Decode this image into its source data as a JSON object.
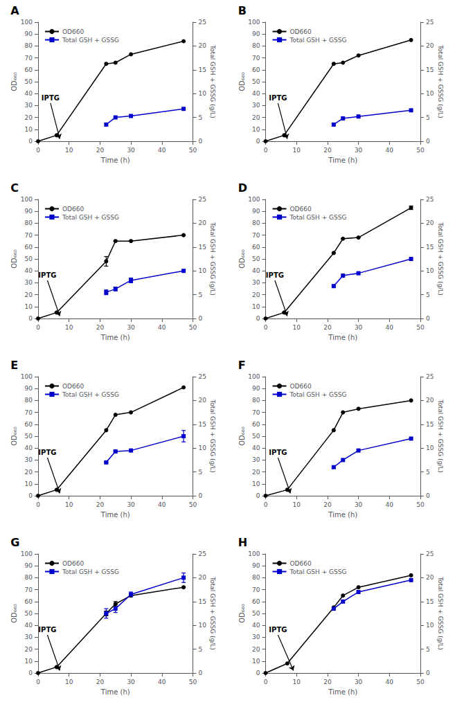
{
  "chart_data": [
    {
      "type": "line",
      "title": "A",
      "xlabel": "Time (h)",
      "ylabel": "OD₆₆₀",
      "y2label": "Total GSH + GSSG (g/L)",
      "xlim": [
        0,
        50
      ],
      "xticks": [
        0,
        10,
        20,
        30,
        40,
        50
      ],
      "ylim": [
        0,
        100
      ],
      "yticks": [
        0,
        10,
        20,
        30,
        40,
        50,
        60,
        70,
        80,
        90,
        100
      ],
      "y2lim": [
        0,
        25
      ],
      "y2ticks": [
        0,
        5,
        10,
        15,
        20,
        25
      ],
      "grid": false,
      "legend": "upper left",
      "series": [
        {
          "name": "OD660",
          "color": "#000000",
          "marker": "circle",
          "x": [
            0,
            6,
            22,
            25,
            30,
            47
          ],
          "values": [
            0,
            5,
            65,
            66,
            73,
            84
          ]
        },
        {
          "name": "Total GSH + GSSG",
          "color": "#0000cc",
          "marker": "square",
          "axis": "y2",
          "x": [
            22,
            25,
            30,
            47
          ],
          "values": [
            3.5,
            5.0,
            5.3,
            6.8
          ]
        }
      ],
      "annotations": [
        {
          "text": "IPTG",
          "x": 4,
          "y": 32,
          "arrow_x": 7,
          "arrow_y": 2
        }
      ]
    },
    {
      "type": "line",
      "title": "B",
      "xlabel": "Time (h)",
      "ylabel": "OD₆₆₀",
      "y2label": "Total GSH + GSSG (g/L)",
      "xlim": [
        0,
        50
      ],
      "xticks": [
        0,
        10,
        20,
        30,
        40,
        50
      ],
      "ylim": [
        0,
        100
      ],
      "yticks": [
        0,
        10,
        20,
        30,
        40,
        50,
        60,
        70,
        80,
        90,
        100
      ],
      "y2lim": [
        0,
        25
      ],
      "y2ticks": [
        0,
        5,
        10,
        15,
        20,
        25
      ],
      "grid": false,
      "legend": "upper left",
      "series": [
        {
          "name": "OD660",
          "color": "#000000",
          "marker": "circle",
          "x": [
            0,
            6,
            22,
            25,
            30,
            47
          ],
          "values": [
            0,
            5,
            65,
            66,
            72,
            85
          ]
        },
        {
          "name": "Total GSH + GSSG",
          "color": "#0000cc",
          "marker": "square",
          "axis": "y2",
          "x": [
            22,
            25,
            30,
            47
          ],
          "values": [
            3.5,
            4.8,
            5.2,
            6.5
          ]
        }
      ],
      "annotations": [
        {
          "text": "IPTG",
          "x": 4,
          "y": 32,
          "arrow_x": 7,
          "arrow_y": 2
        }
      ]
    },
    {
      "type": "line",
      "title": "C",
      "xlabel": "Time (h)",
      "ylabel": "OD₆₆₀",
      "y2label": "Total GSH + GSSG (g/L)",
      "xlim": [
        0,
        50
      ],
      "xticks": [
        0,
        10,
        20,
        30,
        40,
        50
      ],
      "ylim": [
        0,
        100
      ],
      "yticks": [
        0,
        10,
        20,
        30,
        40,
        50,
        60,
        70,
        80,
        90,
        100
      ],
      "y2lim": [
        0,
        25
      ],
      "y2ticks": [
        0,
        5,
        10,
        15,
        20,
        25
      ],
      "grid": false,
      "legend": "upper left",
      "series": [
        {
          "name": "OD660",
          "color": "#000000",
          "marker": "circle",
          "x": [
            0,
            6,
            22,
            25,
            30,
            47
          ],
          "values": [
            0,
            5,
            48,
            65,
            65,
            70
          ],
          "errors": [
            0,
            0,
            4,
            0,
            0,
            0
          ]
        },
        {
          "name": "Total GSH + GSSG",
          "color": "#0000cc",
          "marker": "square",
          "axis": "y2",
          "x": [
            22,
            25,
            30,
            47
          ],
          "values": [
            5.5,
            6.2,
            8.0,
            10.0
          ],
          "errors": [
            0.5,
            0.4,
            0.5,
            0.0
          ]
        }
      ],
      "annotations": [
        {
          "text": "IPTG",
          "x": 3,
          "y": 32,
          "arrow_x": 7,
          "arrow_y": 2
        }
      ]
    },
    {
      "type": "line",
      "title": "D",
      "xlabel": "Time (h)",
      "ylabel": "OD₆₆₀",
      "y2label": "Total GSH + GSSG (g/L)",
      "xlim": [
        0,
        50
      ],
      "xticks": [
        0,
        10,
        20,
        30,
        40,
        50
      ],
      "ylim": [
        0,
        100
      ],
      "yticks": [
        0,
        10,
        20,
        30,
        40,
        50,
        60,
        70,
        80,
        90,
        100
      ],
      "y2lim": [
        0,
        25
      ],
      "y2ticks": [
        0,
        5,
        10,
        15,
        20,
        25
      ],
      "grid": false,
      "legend": "upper left",
      "series": [
        {
          "name": "OD660",
          "color": "#000000",
          "marker": "circle",
          "x": [
            0,
            6,
            22,
            25,
            30,
            47
          ],
          "values": [
            0,
            5,
            55,
            67,
            68,
            93
          ],
          "errors": [
            0,
            0,
            0,
            0,
            0,
            1.5
          ]
        },
        {
          "name": "Total GSH + GSSG",
          "color": "#0000cc",
          "marker": "square",
          "axis": "y2",
          "x": [
            22,
            25,
            30,
            47
          ],
          "values": [
            6.8,
            9.0,
            9.5,
            12.5
          ]
        }
      ],
      "annotations": [
        {
          "text": "IPTG",
          "x": 3,
          "y": 32,
          "arrow_x": 7,
          "arrow_y": 2
        }
      ]
    },
    {
      "type": "line",
      "title": "E",
      "xlabel": "Time (h)",
      "ylabel": "OD₆₆₀",
      "y2label": "Total GSH + GSSG (g/L)",
      "xlim": [
        0,
        50
      ],
      "xticks": [
        0,
        10,
        20,
        30,
        40,
        50
      ],
      "ylim": [
        0,
        100
      ],
      "yticks": [
        0,
        10,
        20,
        30,
        40,
        50,
        60,
        70,
        80,
        90,
        100
      ],
      "y2lim": [
        0,
        25
      ],
      "y2ticks": [
        0,
        5,
        10,
        15,
        20,
        25
      ],
      "grid": false,
      "legend": "upper left",
      "series": [
        {
          "name": "OD660",
          "color": "#000000",
          "marker": "circle",
          "x": [
            0,
            6,
            22,
            25,
            30,
            47
          ],
          "values": [
            0,
            5,
            55,
            68,
            70,
            91
          ]
        },
        {
          "name": "Total GSH + GSSG",
          "color": "#0000cc",
          "marker": "square",
          "axis": "y2",
          "x": [
            22,
            25,
            30,
            47
          ],
          "values": [
            7.0,
            9.3,
            9.5,
            12.5
          ],
          "errors": [
            0,
            0,
            0,
            1.2
          ]
        }
      ],
      "annotations": [
        {
          "text": "IPTG",
          "x": 3,
          "y": 32,
          "arrow_x": 7,
          "arrow_y": 2
        }
      ]
    },
    {
      "type": "line",
      "title": "F",
      "xlabel": "Time (h)",
      "ylabel": "OD₆₆₀",
      "y2label": "Total GSH + GSSG (g/L)",
      "xlim": [
        0,
        50
      ],
      "xticks": [
        0,
        10,
        20,
        30,
        40,
        50
      ],
      "ylim": [
        0,
        100
      ],
      "yticks": [
        0,
        10,
        20,
        30,
        40,
        50,
        60,
        70,
        80,
        90,
        100
      ],
      "y2lim": [
        0,
        25
      ],
      "y2ticks": [
        0,
        5,
        10,
        15,
        20,
        25
      ],
      "grid": false,
      "legend": "upper left",
      "series": [
        {
          "name": "OD660",
          "color": "#000000",
          "marker": "circle",
          "x": [
            0,
            7,
            22,
            25,
            30,
            47
          ],
          "values": [
            0,
            5,
            55,
            70,
            73,
            80
          ]
        },
        {
          "name": "Total GSH + GSSG",
          "color": "#0000cc",
          "marker": "square",
          "axis": "y2",
          "x": [
            22,
            25,
            30,
            47
          ],
          "values": [
            6.0,
            7.5,
            9.5,
            12.0
          ]
        }
      ],
      "annotations": [
        {
          "text": "IPTG",
          "x": 4,
          "y": 32,
          "arrow_x": 8,
          "arrow_y": 2
        }
      ]
    },
    {
      "type": "line",
      "title": "G",
      "xlabel": "Time (h)",
      "ylabel": "OD₆₆₀",
      "y2label": "Total GSH + GSSG (g/L)",
      "xlim": [
        0,
        50
      ],
      "xticks": [
        0,
        10,
        20,
        30,
        40,
        50
      ],
      "ylim": [
        0,
        100
      ],
      "yticks": [
        0,
        10,
        20,
        30,
        40,
        50,
        60,
        70,
        80,
        90,
        100
      ],
      "y2lim": [
        0,
        25
      ],
      "y2ticks": [
        0,
        5,
        10,
        15,
        20,
        25
      ],
      "grid": false,
      "legend": "upper left",
      "series": [
        {
          "name": "OD660",
          "color": "#000000",
          "marker": "circle",
          "x": [
            0,
            6,
            22,
            25,
            30,
            47
          ],
          "values": [
            0,
            5,
            50,
            58,
            65,
            72
          ],
          "errors": [
            0,
            0,
            2,
            2,
            0,
            0
          ]
        },
        {
          "name": "Total GSH + GSSG",
          "color": "#0000cc",
          "marker": "square",
          "axis": "y2",
          "x": [
            22,
            25,
            30,
            47
          ],
          "values": [
            12.5,
            13.5,
            16.5,
            20.0
          ],
          "errors": [
            1.0,
            0.8,
            0.5,
            1.0
          ]
        }
      ],
      "annotations": [
        {
          "text": "IPTG",
          "x": 3,
          "y": 32,
          "arrow_x": 7,
          "arrow_y": 2
        }
      ]
    },
    {
      "type": "line",
      "title": "H",
      "xlabel": "Time (h)",
      "ylabel": "OD₆₆₀",
      "y2label": "Total GSH + GSSG (g/L)",
      "xlim": [
        0,
        50
      ],
      "xticks": [
        0,
        10,
        20,
        30,
        40,
        50
      ],
      "ylim": [
        0,
        100
      ],
      "yticks": [
        0,
        10,
        20,
        30,
        40,
        50,
        60,
        70,
        80,
        90,
        100
      ],
      "y2lim": [
        0,
        25
      ],
      "y2ticks": [
        0,
        5,
        10,
        15,
        20,
        25
      ],
      "grid": false,
      "legend": "upper left",
      "series": [
        {
          "name": "OD660",
          "color": "#000000",
          "marker": "circle",
          "x": [
            0,
            7,
            22,
            25,
            30,
            47
          ],
          "values": [
            0,
            8,
            55,
            65,
            72,
            82
          ]
        },
        {
          "name": "Total GSH + GSSG",
          "color": "#0000cc",
          "marker": "square",
          "axis": "y2",
          "x": [
            22,
            25,
            30,
            47
          ],
          "values": [
            13.5,
            15.0,
            17.0,
            19.5
          ]
        }
      ],
      "annotations": [
        {
          "text": "IPTG",
          "x": 4,
          "y": 32,
          "arrow_x": 9,
          "arrow_y": 2
        }
      ]
    }
  ]
}
